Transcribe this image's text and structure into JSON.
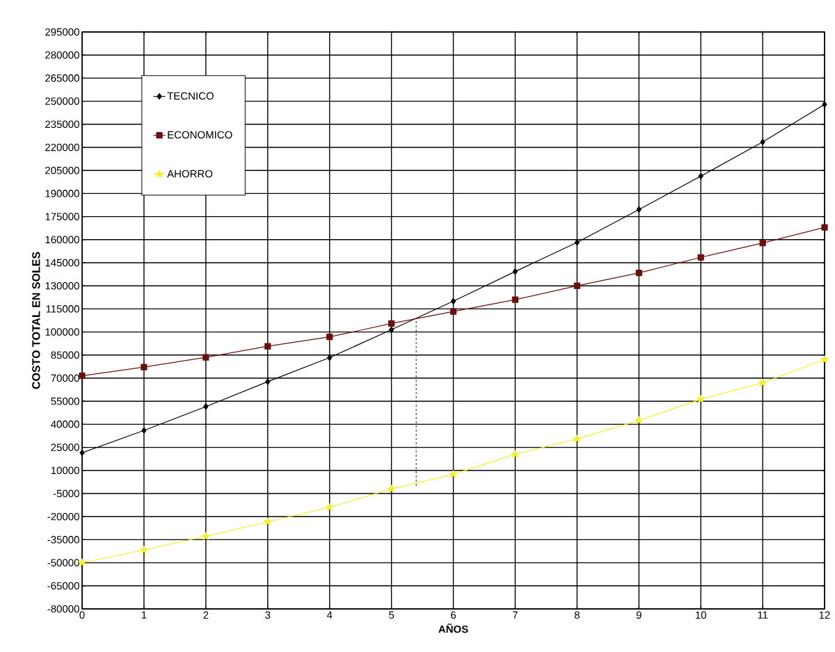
{
  "chart_data": {
    "type": "line",
    "xlabel": "AÑOS",
    "ylabel": "COSTO TOTAL EN SOLES",
    "x": [
      0,
      1,
      2,
      3,
      4,
      5,
      6,
      7,
      8,
      9,
      10,
      11,
      12
    ],
    "series": [
      {
        "name": "TECNICO",
        "color": "#000000",
        "marker": "diamond",
        "values": [
          21500,
          36000,
          51500,
          67700,
          83300,
          101500,
          120000,
          139300,
          158200,
          179600,
          201300,
          223500,
          247900
        ]
      },
      {
        "name": "ECONOMICO",
        "color": "#6b0f0f",
        "marker": "square",
        "values": [
          71500,
          77200,
          83500,
          90700,
          96800,
          105500,
          113300,
          121000,
          130000,
          138400,
          148500,
          157800,
          168000
        ]
      },
      {
        "name": "AHORRO",
        "color": "#f0f030",
        "marker": "star",
        "values": [
          -50000,
          -41700,
          -32900,
          -23400,
          -14000,
          -2000,
          7500,
          20500,
          30500,
          42500,
          56300,
          67000,
          82000
        ]
      },
      {
        "x": [
          5.4,
          5.4
        ],
        "color": "#2f4f2f",
        "marker": "none",
        "line_style": "dashed",
        "values": [
          0,
          107000
        ]
      }
    ],
    "xlim": [
      0,
      12
    ],
    "xticks": [
      0,
      1,
      2,
      3,
      4,
      5,
      6,
      7,
      8,
      9,
      10,
      11,
      12
    ],
    "ylim": [
      -80000,
      295000
    ],
    "yticks": [
      -80000,
      -65000,
      -50000,
      -35000,
      -20000,
      -5000,
      10000,
      25000,
      40000,
      55000,
      70000,
      85000,
      100000,
      115000,
      130000,
      145000,
      160000,
      175000,
      190000,
      205000,
      220000,
      235000,
      250000,
      265000,
      280000,
      295000
    ],
    "grid": true,
    "legend": "top left"
  }
}
